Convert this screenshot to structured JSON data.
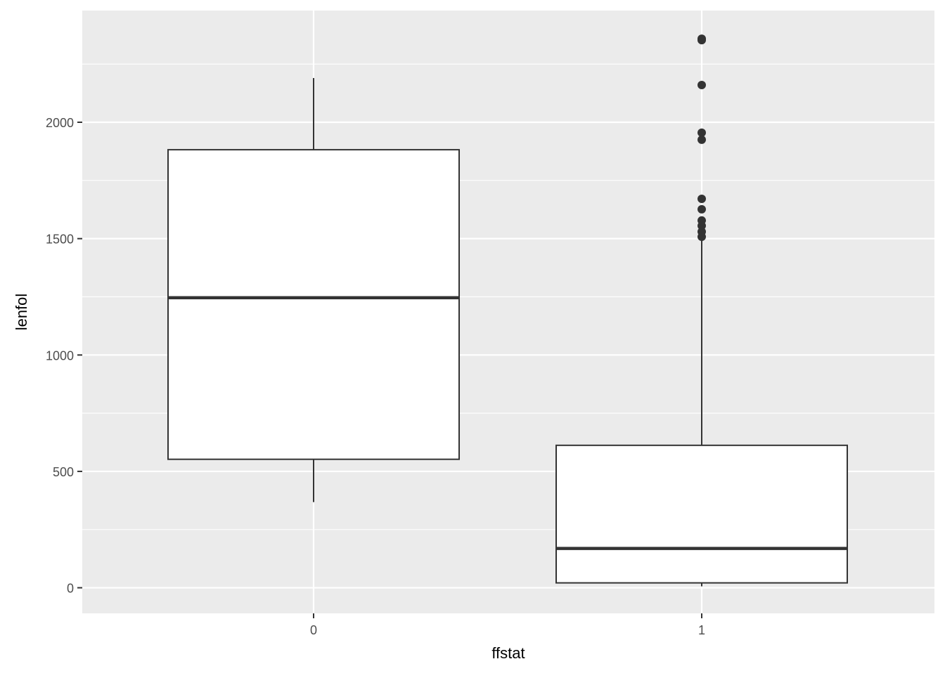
{
  "chart_data": {
    "type": "boxplot",
    "xlabel": "ffstat",
    "ylabel": "lenfol",
    "categories": [
      "0",
      "1"
    ],
    "ylim": [
      -110,
      2480
    ],
    "yticks": [
      0,
      500,
      1000,
      1500,
      2000
    ],
    "ytick_labels": [
      "0",
      "500",
      "1000",
      "1500",
      "2000"
    ],
    "grid": true,
    "panel_background": "#EBEBEB",
    "box_color": "#333333",
    "boxes": [
      {
        "category": "0",
        "lower_whisker": 368,
        "q1": 552,
        "median": 1246,
        "q3": 1882,
        "upper_whisker": 2190,
        "outliers": []
      },
      {
        "category": "1",
        "lower_whisker": 6,
        "q1": 21,
        "median": 169,
        "q3": 612,
        "upper_whisker": 1493,
        "outliers": [
          2359,
          2353,
          2160,
          1955,
          1925,
          1671,
          1626,
          1578,
          1555,
          1530,
          1508
        ]
      }
    ]
  }
}
